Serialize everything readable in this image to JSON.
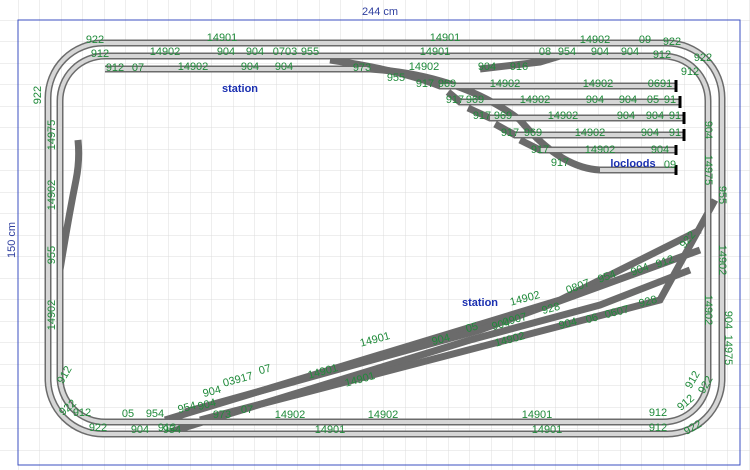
{
  "dimensions": {
    "width": "244 cm",
    "height": "150 cm"
  },
  "annotations": [
    "station",
    "station",
    "locloods"
  ],
  "labels": [
    "922",
    "14901",
    "14901",
    "14902",
    "09",
    "922",
    "912",
    "14902",
    "904",
    "904",
    "0703",
    "955",
    "14901",
    "08",
    "954",
    "904",
    "904",
    "912",
    "922",
    "912",
    "07",
    "14902",
    "904",
    "904",
    "973",
    "14902",
    "904",
    "916",
    "912",
    "955",
    "917",
    "969",
    "14902",
    "14902",
    "0691",
    "917",
    "969",
    "14902",
    "904",
    "904",
    "05",
    "91",
    "917",
    "969",
    "14902",
    "904",
    "904",
    "91",
    "917",
    "969",
    "14902",
    "904",
    "91",
    "917",
    "14902",
    "904",
    "917",
    "09",
    "922",
    "14975",
    "14902",
    "955",
    "14902",
    "912",
    "922",
    "912",
    "922",
    "05",
    "954",
    "904",
    "904",
    "14975",
    "955",
    "14902",
    "14902",
    "904",
    "14975",
    "912",
    "922",
    "912",
    "912",
    "922",
    "0807",
    "954",
    "904",
    "912",
    "922",
    "14902",
    "928",
    "904",
    "06",
    "06",
    "07",
    "928",
    "904",
    "05",
    "0907",
    "14902",
    "904",
    "14901",
    "14901",
    "14901",
    "904",
    "03917",
    "07",
    "954",
    "904",
    "973",
    "07",
    "14902",
    "14902",
    "14901",
    "912",
    "954",
    "14901",
    "14901",
    "912"
  ]
}
